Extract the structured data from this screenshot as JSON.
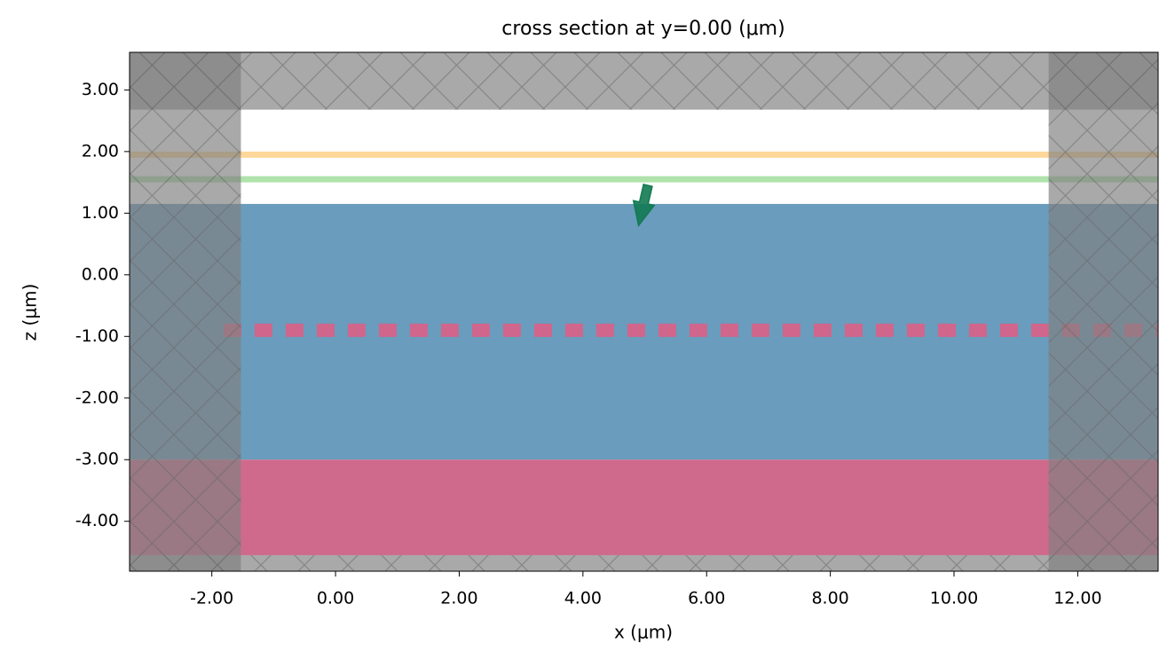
{
  "chart_data": {
    "type": "cross_section",
    "title": "cross section at y=0.00 (μm)",
    "xlabel": "x (μm)",
    "ylabel": "z (μm)",
    "xlim": [
      -3.33,
      13.3
    ],
    "ylim": [
      -4.81,
      3.61
    ],
    "xticks": [
      {
        "value": -2,
        "label": "-2.00"
      },
      {
        "value": 0,
        "label": "0.00"
      },
      {
        "value": 2,
        "label": "2.00"
      },
      {
        "value": 4,
        "label": "4.00"
      },
      {
        "value": 6,
        "label": "6.00"
      },
      {
        "value": 8,
        "label": "8.00"
      },
      {
        "value": 10,
        "label": "10.00"
      },
      {
        "value": 12,
        "label": "12.00"
      }
    ],
    "yticks": [
      {
        "value": 3,
        "label": "3.00"
      },
      {
        "value": 2,
        "label": "2.00"
      },
      {
        "value": 1,
        "label": "1.00"
      },
      {
        "value": 0,
        "label": "0.00"
      },
      {
        "value": -1,
        "label": "-1.00"
      },
      {
        "value": -2,
        "label": "-2.00"
      },
      {
        "value": -3,
        "label": "-3.00"
      },
      {
        "value": -4,
        "label": "-4.00"
      }
    ],
    "boxes": [
      {
        "color": "#6a9cbd",
        "x": [
          -3.33,
          13.3
        ],
        "z": [
          -3,
          1.15
        ]
      },
      {
        "color": "#cf6a8c",
        "x": [
          -3.33,
          13.3
        ],
        "z": [
          -4.55,
          -3
        ]
      }
    ],
    "lines": [
      {
        "color": "#fdd89a",
        "z": 1.95,
        "x": [
          -3.33,
          13.3
        ],
        "dashed": false
      },
      {
        "color": "#afe3ab",
        "z": 1.55,
        "x": [
          -3.33,
          13.3
        ],
        "dashed": false
      },
      {
        "color": "#d0668c",
        "z": -0.9,
        "x": [
          -1.81,
          13.3
        ],
        "dashed": true
      }
    ],
    "arrow": {
      "color": "#127a53",
      "x": [
        5.05,
        4.9
      ],
      "z": [
        1.45,
        0.8
      ]
    },
    "pml": {
      "color": "#808080",
      "boxes": [
        {
          "x": [
            -3.33,
            13.3
          ],
          "z": [
            2.68,
            3.61
          ]
        },
        {
          "x": [
            -3.33,
            13.3
          ],
          "z": [
            -4.81,
            -4.55
          ]
        },
        {
          "x": [
            -3.33,
            -1.53
          ],
          "z": [
            -4.81,
            3.61
          ]
        },
        {
          "x": [
            11.53,
            13.3
          ],
          "z": [
            -4.81,
            3.61
          ]
        }
      ]
    }
  }
}
